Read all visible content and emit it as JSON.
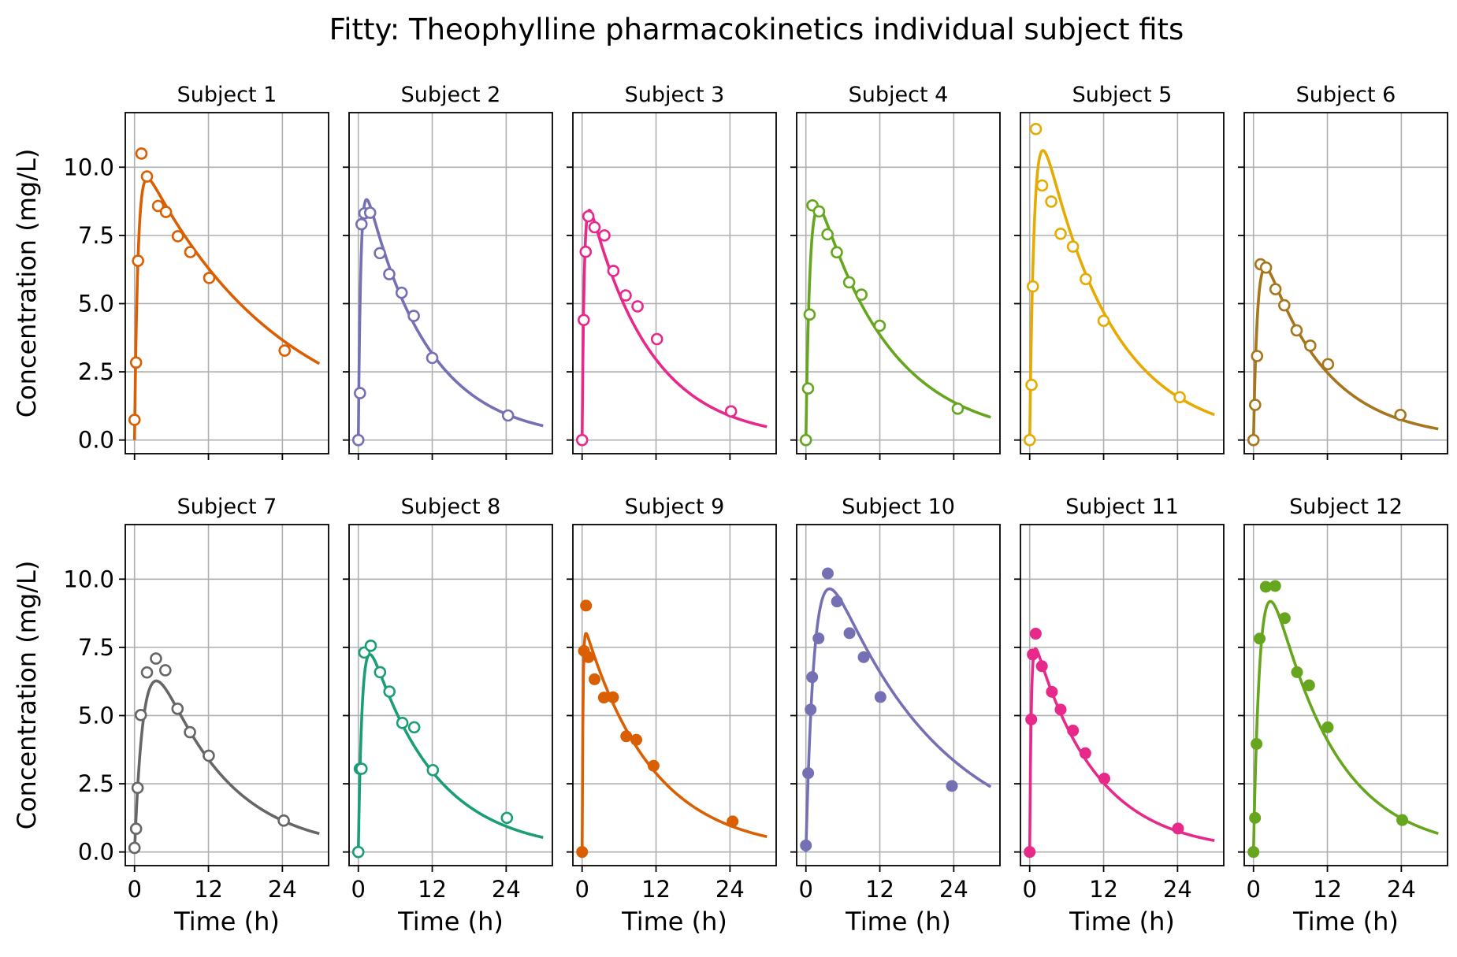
{
  "title": "Fitty: Theophylline pharmacokinetics individual subject fits",
  "chart_data": {
    "type": "line",
    "xlabel": "Time (h)",
    "ylabel": "Concentration (mg/L)",
    "xlim": [
      -1.5,
      31.5
    ],
    "ylim": [
      -0.5,
      12.0
    ],
    "xticks": [
      0,
      12,
      24
    ],
    "xtick_labels": [
      "0",
      "12",
      "24"
    ],
    "yticks": [
      0,
      2.5,
      5,
      7.5,
      10
    ],
    "ytick_labels": [
      "0.0",
      "2.5",
      "5.0",
      "7.5",
      "10.0"
    ],
    "grid": true,
    "panels": [
      {
        "title": "Subject 1",
        "color": "#d95f02",
        "marker": "open",
        "observed": {
          "t": [
            0,
            0.25,
            0.57,
            1.12,
            2.02,
            3.82,
            5.1,
            7.03,
            9.05,
            12.12,
            24.37
          ],
          "c": [
            0.74,
            2.84,
            6.57,
            10.5,
            9.66,
            8.58,
            8.36,
            7.47,
            6.89,
            5.94,
            3.28
          ]
        },
        "fit": {
          "ka": 1.8,
          "ke": 0.045,
          "A": 10.8,
          "tmax": 30
        }
      },
      {
        "title": "Subject 2",
        "color": "#7570b3",
        "marker": "open",
        "observed": {
          "t": [
            0,
            0.27,
            0.52,
            1.0,
            1.92,
            3.5,
            5.02,
            7.03,
            9.0,
            12.0,
            24.3
          ],
          "c": [
            0,
            1.72,
            7.91,
            8.31,
            8.33,
            6.85,
            6.08,
            5.4,
            4.55,
            3.01,
            0.9
          ]
        },
        "fit": {
          "ka": 2.5,
          "ke": 0.1,
          "A": 10.5,
          "tmax": 30
        }
      },
      {
        "title": "Subject 3",
        "color": "#e7298a",
        "marker": "open",
        "observed": {
          "t": [
            0,
            0.27,
            0.58,
            1.02,
            2.02,
            3.62,
            5.08,
            7.07,
            9.0,
            12.15,
            24.17
          ],
          "c": [
            0,
            4.4,
            6.9,
            8.2,
            7.8,
            7.5,
            6.2,
            5.3,
            4.9,
            3.7,
            1.05
          ]
        },
        "fit": {
          "ka": 3.0,
          "ke": 0.1,
          "A": 9.8,
          "tmax": 30
        }
      },
      {
        "title": "Subject 4",
        "color": "#66a61e",
        "marker": "open",
        "observed": {
          "t": [
            0,
            0.35,
            0.6,
            1.07,
            2.13,
            3.5,
            5.02,
            7.02,
            9.02,
            11.98,
            24.65
          ],
          "c": [
            0,
            1.89,
            4.6,
            8.6,
            8.38,
            7.54,
            6.88,
            5.78,
            5.33,
            4.19,
            1.15
          ]
        },
        "fit": {
          "ka": 1.5,
          "ke": 0.085,
          "A": 10.7,
          "tmax": 30
        }
      },
      {
        "title": "Subject 5",
        "color": "#e6ab02",
        "marker": "open",
        "observed": {
          "t": [
            0,
            0.3,
            0.52,
            1.0,
            2.02,
            3.5,
            5.02,
            7.02,
            9.1,
            12.0,
            24.35
          ],
          "c": [
            0,
            2.02,
            5.63,
            11.4,
            9.33,
            8.74,
            7.56,
            7.09,
            5.9,
            4.37,
            1.57
          ]
        },
        "fit": {
          "ka": 1.35,
          "ke": 0.09,
          "A": 13.8,
          "tmax": 30
        }
      },
      {
        "title": "Subject 6",
        "color": "#a6761d",
        "marker": "open",
        "observed": {
          "t": [
            0,
            0.27,
            0.58,
            1.15,
            2.03,
            3.57,
            5.0,
            7.0,
            9.22,
            12.1,
            23.85
          ],
          "c": [
            0,
            1.29,
            3.08,
            6.44,
            6.32,
            5.53,
            4.94,
            4.02,
            3.46,
            2.78,
            0.92
          ]
        },
        "fit": {
          "ka": 1.5,
          "ke": 0.1,
          "A": 8.2,
          "tmax": 30
        }
      },
      {
        "title": "Subject 7",
        "color": "#666666",
        "marker": "open",
        "observed": {
          "t": [
            0,
            0.25,
            0.5,
            1.02,
            2.02,
            3.48,
            5.0,
            6.98,
            9.0,
            12.05,
            24.22
          ],
          "c": [
            0.15,
            0.85,
            2.35,
            5.02,
            6.58,
            7.09,
            6.66,
            5.25,
            4.39,
            3.53,
            1.15
          ]
        },
        "fit": {
          "ka": 0.65,
          "ke": 0.09,
          "A": 10.0,
          "tmax": 30
        }
      },
      {
        "title": "Subject 8",
        "color": "#1b9e77",
        "marker": "open",
        "observed": {
          "t": [
            0,
            0.25,
            0.52,
            0.98,
            2.02,
            3.53,
            5.05,
            7.15,
            9.07,
            12.1,
            24.12
          ],
          "c": [
            0,
            3.05,
            3.05,
            7.31,
            7.56,
            6.59,
            5.88,
            4.73,
            4.57,
            3.0,
            1.25
          ]
        },
        "fit": {
          "ka": 1.6,
          "ke": 0.095,
          "A": 9.2,
          "tmax": 30
        }
      },
      {
        "title": "Subject 9",
        "color": "#d95f02",
        "marker": "filled",
        "observed": {
          "t": [
            0,
            0.3,
            0.63,
            1.05,
            2.02,
            3.53,
            5.02,
            7.17,
            8.8,
            11.6,
            24.43
          ],
          "c": [
            0,
            7.37,
            9.03,
            7.14,
            6.33,
            5.66,
            5.67,
            4.24,
            4.11,
            3.16,
            1.12
          ]
        },
        "fit": {
          "ka": 7.0,
          "ke": 0.091,
          "A": 8.6,
          "tmax": 30
        }
      },
      {
        "title": "Subject 10",
        "color": "#7570b3",
        "marker": "filled",
        "observed": {
          "t": [
            0,
            0.37,
            0.77,
            1.02,
            2.05,
            3.55,
            5.05,
            7.08,
            9.38,
            12.1,
            23.7
          ],
          "c": [
            0.24,
            2.89,
            5.22,
            6.41,
            7.83,
            10.21,
            9.18,
            8.02,
            7.14,
            5.68,
            2.42
          ]
        },
        "fit": {
          "ka": 0.72,
          "ke": 0.0565,
          "A": 13.0,
          "tmax": 30
        }
      },
      {
        "title": "Subject 11",
        "color": "#e7298a",
        "marker": "filled",
        "observed": {
          "t": [
            0,
            0.25,
            0.5,
            0.98,
            1.98,
            3.6,
            5.02,
            7.03,
            9.03,
            12.12,
            24.08
          ],
          "c": [
            0,
            4.86,
            7.24,
            8.0,
            6.81,
            5.87,
            5.22,
            4.45,
            3.62,
            2.69,
            0.86
          ]
        },
        "fit": {
          "ka": 4.0,
          "ke": 0.1,
          "A": 8.4,
          "tmax": 30
        }
      },
      {
        "title": "Subject 12",
        "color": "#66a61e",
        "marker": "filled",
        "observed": {
          "t": [
            0,
            0.25,
            0.5,
            1.0,
            2.0,
            3.52,
            5.07,
            7.07,
            9.03,
            12.05,
            24.15
          ],
          "c": [
            0,
            1.25,
            3.96,
            7.82,
            9.72,
            9.75,
            8.57,
            6.59,
            6.11,
            4.57,
            1.17
          ]
        },
        "fit": {
          "ka": 0.9,
          "ke": 0.1,
          "A": 13.6,
          "tmax": 30
        }
      }
    ]
  }
}
